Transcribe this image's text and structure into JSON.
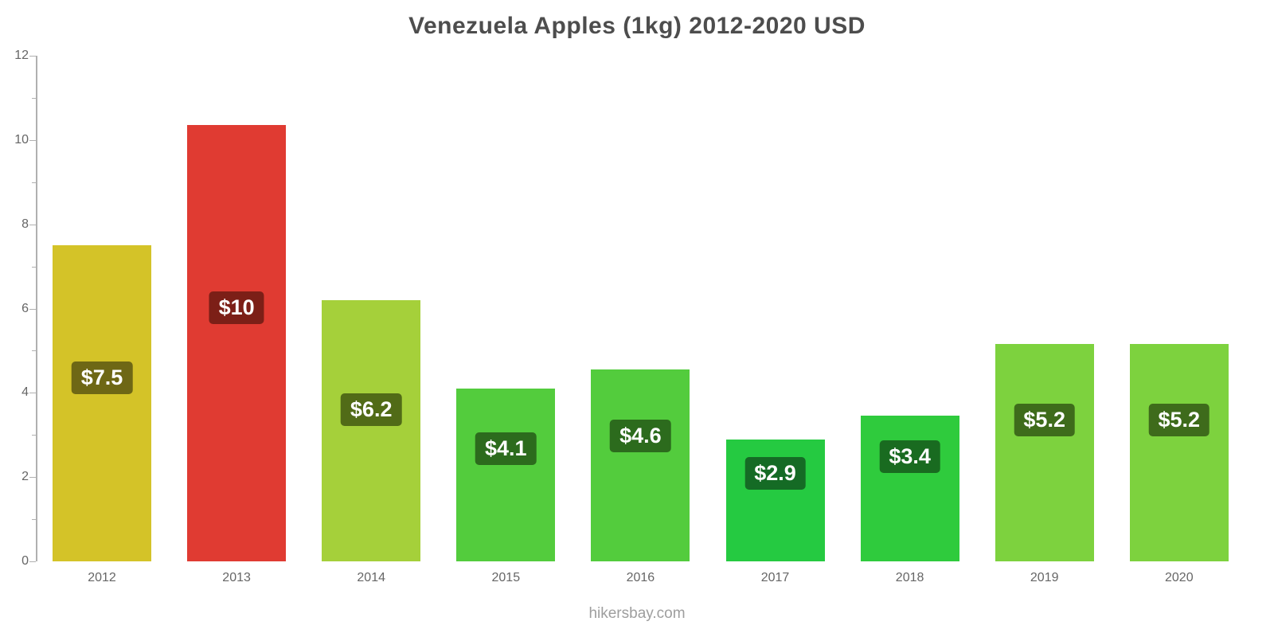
{
  "chart_data": {
    "type": "bar",
    "title": "Venezuela Apples (1kg) 2012-2020 USD",
    "xlabel": "",
    "ylabel": "",
    "categories": [
      "2012",
      "2013",
      "2014",
      "2015",
      "2016",
      "2017",
      "2018",
      "2019",
      "2020"
    ],
    "values": [
      7.5,
      10.35,
      6.2,
      4.1,
      4.55,
      2.9,
      3.45,
      5.15,
      5.15
    ],
    "value_labels": [
      "$7.5",
      "$10",
      "$6.2",
      "$4.1",
      "$4.6",
      "$2.9",
      "$3.4",
      "$5.2",
      "$5.2"
    ],
    "bar_colors": [
      "#d4c328",
      "#e03b32",
      "#a5d03a",
      "#53cc3d",
      "#53cc3d",
      "#25ca41",
      "#2fcb3d",
      "#7dd23e",
      "#7dd23e"
    ],
    "label_pill_colors": [
      "#6e6715",
      "#7c1f17",
      "#516b17",
      "#2c6b1d",
      "#2c6b1d",
      "#156b25",
      "#196b20",
      "#3e6b1b",
      "#3e6b1b"
    ],
    "ylim": [
      0,
      12
    ],
    "yticks": [
      0,
      2,
      4,
      6,
      8,
      10,
      12
    ],
    "minor_tick_step": 1,
    "grid": false,
    "legend": null,
    "currency": "USD"
  },
  "footer": {
    "text": "hikersbay.com"
  }
}
